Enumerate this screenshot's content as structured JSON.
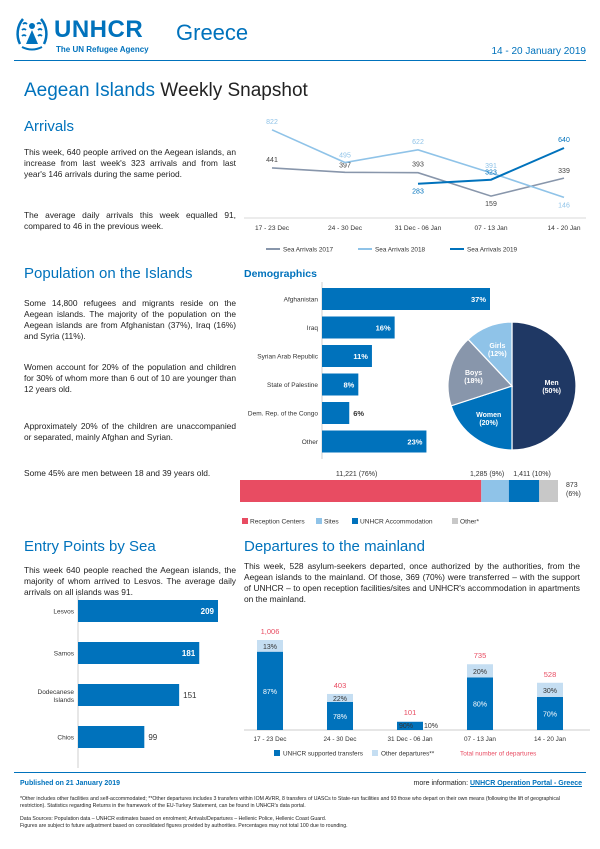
{
  "header": {
    "org": "UNHCR",
    "tagline": "The UN Refugee Agency",
    "country": "Greece",
    "date_range": "14 - 20 January 2019",
    "title_highlight": "Aegean Islands",
    "title_rest": "Weekly Snapshot"
  },
  "arrivals": {
    "heading": "Arrivals",
    "p1": "This week, 640 people arrived on the Aegean islands, an increase from last week's 323 arrivals and from last year's 146 arrivals during the same period.",
    "p2": "The average daily arrivals this week equalled 91, compared to 46 in the previous week."
  },
  "population": {
    "heading": "Population on the Islands",
    "p1": "Some 14,800 refugees and migrants reside on the Aegean islands. The majority of the population on the Aegean islands are from Afghanistan (37%), Iraq (16%) and Syria (11%).",
    "p2": "Women account for 20% of the population and children for 30% of whom more than 6 out of 10 are younger than 12 years old.",
    "p3": "Approximately 20% of the children are unaccompanied or separated, mainly Afghan and Syrian.",
    "p4": "Some 45% are men between 18 and 39 years old."
  },
  "demographics": {
    "heading": "Demographics"
  },
  "entry": {
    "heading": "Entry Points by Sea",
    "p1": "This week 640 people reached the Aegean islands, the majority of whom arrived to Lesvos. The average daily arrivals on all islands was 91."
  },
  "departures": {
    "heading": "Departures to the mainland",
    "p1": "This week, 528 asylum-seekers departed, once authorized by the authorities, from the Aegean islands to the mainland. Of those, 369 (70%) were transferred – with the support of UNHCR – to open reception facilities/sites and UNHCR's accommodation in apartments on the mainland."
  },
  "footer": {
    "published": "Published on 21 January 2019",
    "more_label": "more information:",
    "more_link": "UNHCR Operation Portal - Greece",
    "note1": "*Other includes other facilities and self-accommodated; **Other departures includes 3 transfers within IOM AVRR, 8 transfers of UASCs to State-run facilities and 93 those who depart on their own means (following the lift of geographical restriction). Statistics regarding Returns in the framework of the EU-Turkey Statement, can be found in UNHCR's data portal.",
    "note2": "Data Sources: Population data – UNHCR estimates based on enrolment; Arrivals/Departures – Hellenic Police, Hellenic Coast Guard.",
    "note3": "Figures are subject to future adjustment based on consolidated figures provided by authorities. Percentages may not total 100 due to rounding."
  },
  "colors": {
    "dark": "#1f3864",
    "blue": "#0072bc",
    "light": "#8fc3e8",
    "grey": "#8896ab",
    "red": "#e84c62",
    "silver": "#c8c8c8"
  },
  "chart_data": [
    {
      "type": "line",
      "categories": [
        "17 - 23 Dec",
        "24 - 30 Dec",
        "31 Dec - 06 Jan",
        "07 - 13 Jan",
        "14 - 20 Jan"
      ],
      "series": [
        {
          "name": "Sea Arrivals 2017",
          "values": [
            441,
            397,
            393,
            159,
            339
          ]
        },
        {
          "name": "Sea Arrivals 2018",
          "values": [
            822,
            495,
            622,
            391,
            146
          ]
        },
        {
          "name": "Sea Arrivals 2019",
          "values": [
            null,
            null,
            283,
            323,
            640
          ]
        }
      ],
      "ylim": [
        0,
        900
      ],
      "legend": "bottom"
    },
    {
      "type": "bar",
      "orientation": "horizontal",
      "categories": [
        "Afghanistan",
        "Iraq",
        "Syrian Arab Republic",
        "State of Palestine",
        "Dem. Rep. of the Congo",
        "Other"
      ],
      "values": [
        37,
        16,
        11,
        8,
        6,
        23
      ],
      "labels": [
        "37%",
        "16%",
        "11%",
        "8%",
        "6%",
        "23%"
      ]
    },
    {
      "type": "pie",
      "labels": [
        "Men",
        "Women",
        "Boys",
        "Girls"
      ],
      "pcts": [
        "(50%)",
        "(20%)",
        "(18%)",
        "(12%)"
      ],
      "values": [
        50,
        20,
        18,
        12
      ]
    },
    {
      "type": "bar",
      "orientation": "stacked-horizontal",
      "categories": [
        "Reception Centers",
        "Sites",
        "UNHCR Accommodation",
        "Other*"
      ],
      "values": [
        11221,
        1285,
        1411,
        873
      ],
      "labels": [
        "11,221  (76%)",
        "1,285  (9%)",
        "1,411  (10%)",
        "873"
      ],
      "pct_other": "(6%)",
      "legend": "bottom"
    },
    {
      "type": "bar",
      "orientation": "horizontal",
      "categories": [
        "Lesvos",
        "Samos",
        "Dodecanese Islands",
        "Chios"
      ],
      "values": [
        209,
        181,
        151,
        99
      ]
    },
    {
      "type": "bar",
      "orientation": "stacked-vertical",
      "categories": [
        "17 - 23 Dec",
        "24 - 30 Dec",
        "31 Dec - 06 Jan",
        "07 - 13 Jan",
        "14 - 20 Jan"
      ],
      "totals": [
        1006,
        403,
        101,
        735,
        528
      ],
      "total_labels": [
        "1,006",
        "403",
        "101",
        "735",
        "528"
      ],
      "supported_pct": [
        "87%",
        "78%",
        "90%",
        "80%",
        "70%"
      ],
      "other_pct": [
        "13%",
        "22%",
        "10%",
        "20%",
        "30%"
      ],
      "supported_share": [
        0.87,
        0.78,
        0.9,
        0.8,
        0.7
      ],
      "legend": [
        "UNHCR supported transfers",
        "Other departures**",
        "Total number of departures"
      ]
    }
  ]
}
